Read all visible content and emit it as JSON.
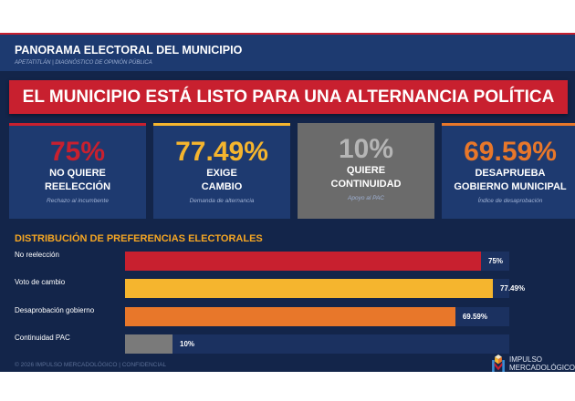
{
  "header": {
    "title": "PANORAMA ELECTORAL DEL MUNICIPIO",
    "subtitle": "APETATITLÁN  |  DIAGNÓSTICO DE OPINIÓN PÚBLICA"
  },
  "banner": "EL MUNICIPIO ESTÁ LISTO PARA UNA ALTERNANCIA POLÍTICA",
  "cards": [
    {
      "value": "75%",
      "line1": "NO QUIERE",
      "line2": "REELECCIÓN",
      "note": "Rechazo al incumbente",
      "color": "#c8202f"
    },
    {
      "value": "77.49%",
      "line1": "EXIGE",
      "line2": "CAMBIO",
      "note": "Demanda de alternancia",
      "color": "#f5b52e"
    },
    {
      "value": "10%",
      "line1": "QUIERE",
      "line2": "CONTINUIDAD",
      "note": "Apoyo al PAC",
      "color": "#b5b5b5"
    },
    {
      "value": "69.59%",
      "line1": "DESAPRUEBA",
      "line2": "GOBIERNO MUNICIPAL",
      "note": "Índice de desaprobación",
      "color": "#e8772a"
    }
  ],
  "chart_data": {
    "type": "bar",
    "title": "DISTRIBUCIÓN DE PREFERENCIAS ELECTORALES",
    "categories": [
      "No reelección",
      "Voto de cambio",
      "Desaprobación gobierno",
      "Continuidad PAC"
    ],
    "values": [
      75,
      77.49,
      69.59,
      10
    ],
    "labels": [
      "75%",
      "77.49%",
      "69.59%",
      "10%"
    ],
    "colors": [
      "#c8202f",
      "#f5b52e",
      "#e8772a",
      "#7a7a7a"
    ]
  },
  "footer": "© 2026 IMPULSO MERCADOLÓGICO  |  CONFIDENCIAL",
  "logo": {
    "line1": "IMPULSO",
    "line2": "MERCADOLÓGICO"
  }
}
